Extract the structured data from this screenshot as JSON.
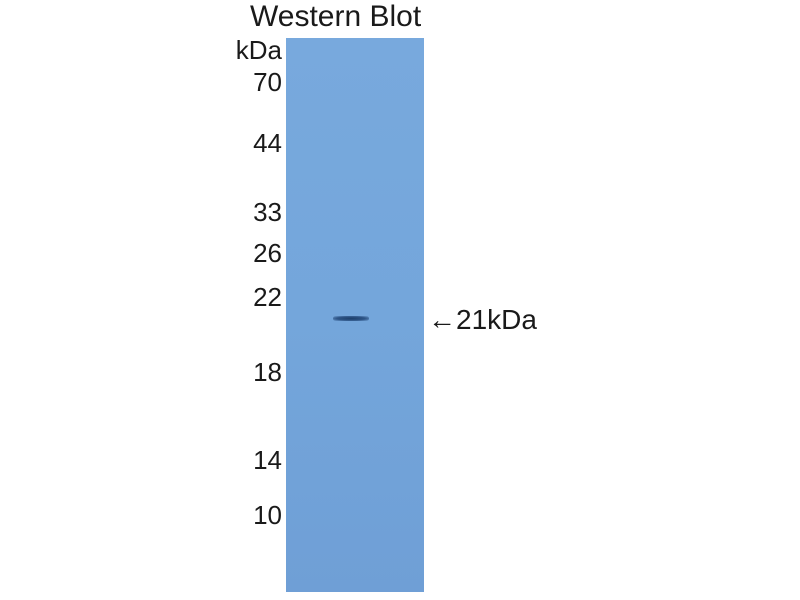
{
  "title": "Western Blot",
  "unit_label": "kDa",
  "markers": [
    "70",
    "44",
    "33",
    "26",
    "22",
    "18",
    "14",
    "10"
  ],
  "band_annotation": "←21kDa",
  "colors": {
    "membrane": "#76a8dc",
    "band": "#2a4d7e"
  }
}
